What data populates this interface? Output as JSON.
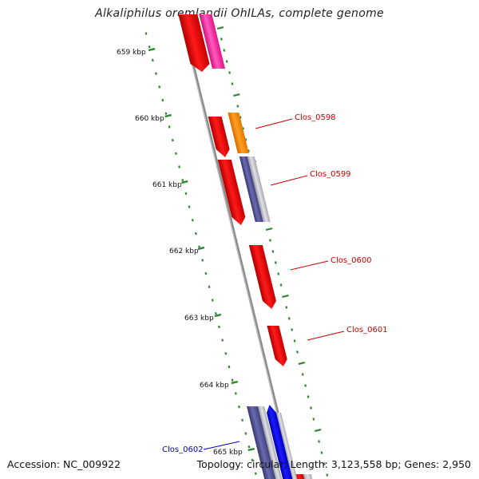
{
  "title": "Alkaliphilus oremlandii OhILAs, complete genome",
  "footer": {
    "accession": "Accession: NC_009922",
    "summary": "Topology: circular; Length: 3,123,558 bp; Genes: 2,950"
  },
  "scale": {
    "ticks": [
      {
        "label": "659 kbp"
      },
      {
        "label": "660 kbp"
      },
      {
        "label": "661 kbp"
      },
      {
        "label": "662 kbp"
      },
      {
        "label": "663 kbp"
      },
      {
        "label": "664 kbp"
      },
      {
        "label": "665 kbp"
      }
    ]
  },
  "genes": [
    {
      "label": "Clos_0598",
      "color": "#cc0000"
    },
    {
      "label": "Clos_0599",
      "color": "#cc0000"
    },
    {
      "label": "Clos_0600",
      "color": "#cc0000"
    },
    {
      "label": "Clos_0601",
      "color": "#cc0000"
    },
    {
      "label": "Clos_0602",
      "color": "#0000cc"
    }
  ],
  "colors": {
    "forward_cds": "#ee0000",
    "reverse_cds": "#0000ee",
    "orange_feature": "#ff8800",
    "pink_feature": "#ff1493",
    "purple_feature": "#4b4b9a",
    "grey_feature": "#b8b8c0",
    "backbone": "#8a8a8a",
    "tick_green": "#2e8b2e"
  }
}
